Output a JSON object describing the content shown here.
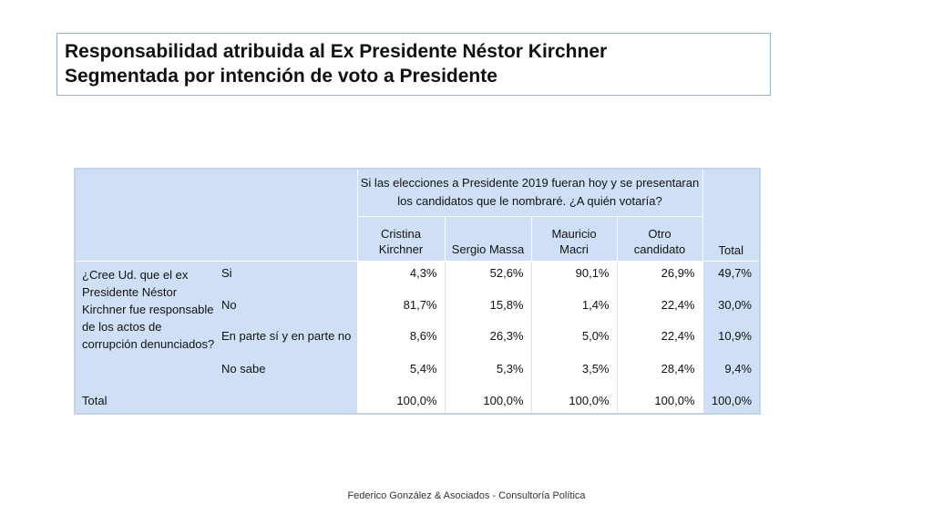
{
  "title": {
    "line1": "Responsabilidad atribuida al Ex Presidente Néstor Kirchner",
    "line2": "Segmentada por intención de voto a Presidente"
  },
  "table": {
    "header_question_line1": "Si las elecciones a Presidente 2019 fueran hoy y se presentaran",
    "header_question_line2": "los candidatos que le nombraré. ¿A quién votaría?",
    "columns": [
      {
        "line1": "Cristina",
        "line2": "Kirchner"
      },
      {
        "line1": "",
        "line2": "Sergio Massa"
      },
      {
        "line1": "Mauricio",
        "line2": "Macri"
      },
      {
        "line1": "Otro",
        "line2": "candidato"
      }
    ],
    "total_header": "Total",
    "question": "¿Cree Ud. que el ex Presidente Néstor Kirchner fue responsable de los actos de corrupción denunciados?",
    "rows": [
      {
        "label": "Si",
        "values": [
          "4,3%",
          "52,6%",
          "90,1%",
          "26,9%"
        ],
        "total": "49,7%"
      },
      {
        "label": "No",
        "values": [
          "81,7%",
          "15,8%",
          "1,4%",
          "22,4%"
        ],
        "total": "30,0%"
      },
      {
        "label": "En parte sí y en parte no",
        "values": [
          "8,6%",
          "26,3%",
          "5,0%",
          "22,4%"
        ],
        "total": "10,9%"
      },
      {
        "label": "No sabe",
        "values": [
          "5,4%",
          "5,3%",
          "3,5%",
          "28,4%"
        ],
        "total": "9,4%"
      }
    ],
    "total_row": {
      "label": "Total",
      "values": [
        "100,0%",
        "100,0%",
        "100,0%",
        "100,0%"
      ],
      "total": "100,0%"
    }
  },
  "footer": "Federico González & Asociados - Consultoría Política"
}
